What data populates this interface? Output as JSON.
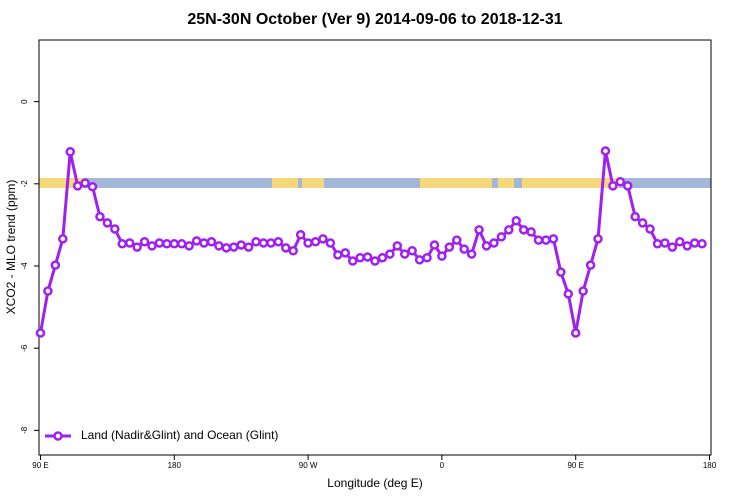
{
  "chart_data": {
    "type": "line",
    "title": "25N-30N October (Ver 9)   2014-09-06 to 2018-12-31",
    "x_label": "Longitude (deg E)",
    "y_label": "XCO2 - MLO trend (ppm)",
    "xlim": [
      89,
      541
    ],
    "ylim": [
      -8.6,
      1.5
    ],
    "xticks": [
      {
        "value": 90,
        "label": "90 E"
      },
      180,
      {
        "value": 270,
        "label": "90 W"
      },
      {
        "value": 360,
        "label": "0"
      },
      {
        "value": 450,
        "label": "90 E"
      },
      {
        "value": 540,
        "label": "180"
      }
    ],
    "yticks": [
      0,
      -2,
      -4,
      -6,
      -8
    ],
    "legend": "bottom-left",
    "x": [
      90,
      95,
      100,
      105,
      110,
      115,
      120,
      125,
      130,
      135,
      140,
      145,
      150,
      155,
      160,
      165,
      170,
      175,
      180,
      185,
      190,
      195,
      200,
      205,
      210,
      215,
      220,
      225,
      230,
      235,
      240,
      245,
      250,
      255,
      260,
      265,
      270,
      275,
      280,
      285,
      290,
      295,
      300,
      305,
      310,
      315,
      320,
      325,
      330,
      335,
      340,
      345,
      350,
      355,
      360,
      365,
      370,
      375,
      380,
      385,
      390,
      395,
      400,
      405,
      410,
      415,
      420,
      425,
      430,
      435,
      440,
      445,
      450,
      455,
      460,
      465,
      470,
      475,
      480,
      485,
      490,
      495,
      500,
      505,
      510,
      515,
      520,
      525,
      530,
      535
    ],
    "series": [
      {
        "name": "Land (Nadir&Glint) and Ocean (Glint)",
        "color": "#a020f0",
        "values": [
          -5.63,
          -4.61,
          -3.98,
          -3.34,
          -1.22,
          -2.05,
          -1.98,
          -2.07,
          -2.8,
          -2.95,
          -3.1,
          -3.46,
          -3.44,
          -3.54,
          -3.41,
          -3.51,
          -3.44,
          -3.46,
          -3.46,
          -3.46,
          -3.51,
          -3.39,
          -3.44,
          -3.41,
          -3.51,
          -3.56,
          -3.54,
          -3.49,
          -3.54,
          -3.41,
          -3.44,
          -3.44,
          -3.41,
          -3.56,
          -3.63,
          -3.24,
          -3.44,
          -3.41,
          -3.34,
          -3.44,
          -3.73,
          -3.68,
          -3.88,
          -3.8,
          -3.78,
          -3.88,
          -3.8,
          -3.71,
          -3.51,
          -3.71,
          -3.63,
          -3.85,
          -3.8,
          -3.49,
          -3.76,
          -3.54,
          -3.37,
          -3.59,
          -3.71,
          -3.12,
          -3.51,
          -3.44,
          -3.29,
          -3.12,
          -2.9,
          -3.12,
          -3.17,
          -3.37,
          -3.37,
          -3.34,
          -4.15,
          -4.68,
          -5.63,
          -4.61,
          -3.98,
          -3.34,
          -1.2,
          -2.05,
          -1.95,
          -2.05,
          -2.8,
          -2.95,
          -3.1,
          -3.46,
          -3.44,
          -3.54,
          -3.41,
          -3.51,
          -3.44,
          -3.46
        ]
      }
    ]
  }
}
